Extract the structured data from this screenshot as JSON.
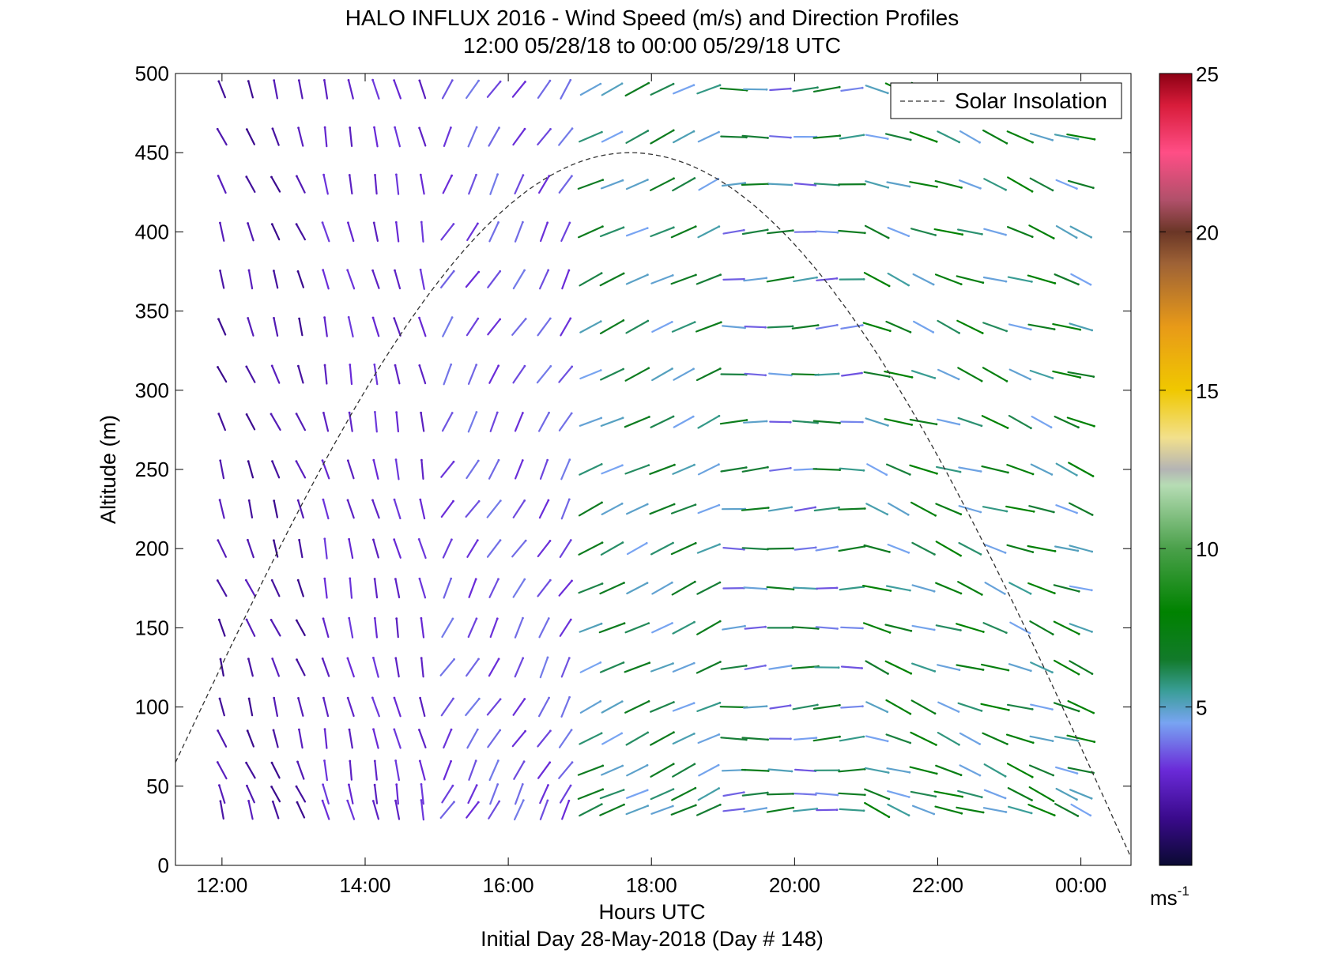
{
  "chart_data": {
    "type": "scatter",
    "title_line1": "HALO INFLUX 2016 - Wind Speed (m/s) and Direction Profiles",
    "title_line2": "12:00 05/28/18 to 00:00 05/29/18  UTC",
    "xlabel": "Hours UTC",
    "xlabel2": "Initial Day 28-May-2018 (Day # 148)",
    "ylabel": "Altitude (m)",
    "x_ticks": [
      {
        "h": 12,
        "label": "12:00"
      },
      {
        "h": 14,
        "label": "14:00"
      },
      {
        "h": 16,
        "label": "16:00"
      },
      {
        "h": 18,
        "label": "18:00"
      },
      {
        "h": 20,
        "label": "20:00"
      },
      {
        "h": 22,
        "label": "22:00"
      },
      {
        "h": 24,
        "label": "00:00"
      }
    ],
    "y_ticks": [
      0,
      50,
      100,
      150,
      200,
      250,
      300,
      350,
      400,
      450,
      500
    ],
    "xlim": [
      11.35,
      24.7
    ],
    "ylim": [
      0,
      500
    ],
    "grid": false,
    "legend": {
      "label": "Solar Insolation",
      "placement": "top-right",
      "style": "dashed"
    },
    "colorbar": {
      "ticks": [
        5,
        10,
        15,
        20,
        25
      ],
      "range": [
        0,
        25
      ],
      "unit_base": "ms",
      "unit_exp": "-1",
      "stops": [
        {
          "v": 0,
          "c": "#0a0a32"
        },
        {
          "v": 1.5,
          "c": "#3a0a8c"
        },
        {
          "v": 3,
          "c": "#6a2ad8"
        },
        {
          "v": 4.5,
          "c": "#78a4f2"
        },
        {
          "v": 5.5,
          "c": "#3a9e98"
        },
        {
          "v": 6.5,
          "c": "#127a2a"
        },
        {
          "v": 8,
          "c": "#008200"
        },
        {
          "v": 10,
          "c": "#4aa04a"
        },
        {
          "v": 12,
          "c": "#b6dcb4"
        },
        {
          "v": 12.5,
          "c": "#b4b4b4"
        },
        {
          "v": 13.5,
          "c": "#f2e08c"
        },
        {
          "v": 15,
          "c": "#f0c800"
        },
        {
          "v": 17,
          "c": "#e89a18"
        },
        {
          "v": 19,
          "c": "#9e6236"
        },
        {
          "v": 20,
          "c": "#6a3626"
        },
        {
          "v": 21,
          "c": "#b0506a"
        },
        {
          "v": 22.5,
          "c": "#ff4e86"
        },
        {
          "v": 24,
          "c": "#d81c3a"
        },
        {
          "v": 25,
          "c": "#8c0014"
        }
      ]
    },
    "solar_insolation": {
      "x_start": 11.35,
      "x_peak": 17.7,
      "x_end": 24.7,
      "y_start": 65,
      "y_peak": 450,
      "y_end": 5
    },
    "wind_barbs": {
      "times": [
        12.0,
        12.4,
        12.75,
        13.1,
        13.45,
        13.8,
        14.15,
        14.45,
        14.8,
        15.15,
        15.5,
        15.8,
        16.15,
        16.5,
        16.8,
        17.15,
        17.45,
        17.8,
        18.15,
        18.45,
        18.8,
        19.15,
        19.45,
        19.8,
        20.15,
        20.45,
        20.8,
        21.15,
        21.45,
        21.8,
        22.15,
        22.45,
        22.8,
        23.15,
        23.45,
        23.8,
        24.0
      ],
      "altitudes": [
        35,
        45,
        60,
        80,
        100,
        125,
        150,
        175,
        200,
        225,
        250,
        280,
        310,
        340,
        370,
        400,
        430,
        460,
        490
      ],
      "direction_note": "wind direction in degrees (meteorological), speed in m/s",
      "segments": [
        {
          "t_start": 11.8,
          "t_end": 13.2,
          "speed_low": 1.5,
          "speed_high": 2.5,
          "dir_low": 330,
          "dir_high": 350
        },
        {
          "t_start": 13.2,
          "t_end": 15.0,
          "speed_low": 2.5,
          "speed_high": 3.2,
          "dir_low": 340,
          "dir_high": 355
        },
        {
          "t_start": 15.0,
          "t_end": 17.0,
          "speed_low": 3.0,
          "speed_high": 4.0,
          "dir_low": 20,
          "dir_high": 40
        },
        {
          "t_start": 17.0,
          "t_end": 19.0,
          "speed_low": 4.5,
          "speed_high": 7.0,
          "dir_low": 60,
          "dir_high": 70
        },
        {
          "t_start": 19.0,
          "t_end": 21.0,
          "speed_low": 3.5,
          "speed_high": 7.0,
          "dir_low": 80,
          "dir_high": 95
        },
        {
          "t_start": 21.0,
          "t_end": 24.0,
          "speed_low": 4.5,
          "speed_high": 8.0,
          "dir_low": 100,
          "dir_high": 120
        }
      ]
    }
  }
}
